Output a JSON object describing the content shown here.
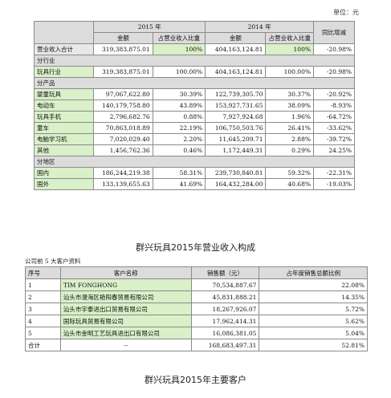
{
  "unit_note": "单位：元",
  "revenue_table": {
    "headers": {
      "year_2015": "2015 年",
      "year_2014": "2014 年",
      "yoy": "同比增减",
      "amount": "金额",
      "share": "占营业收入比重"
    },
    "total": {
      "label": "营业收入合计",
      "amt2015": "319,383,875.01",
      "pct2015": "100%",
      "amt2014": "404,163,124.81",
      "pct2014": "100%",
      "yoy": "-20.98%"
    },
    "sections": [
      {
        "title": "分行业",
        "rows": [
          {
            "label": "玩具行业",
            "amt2015": "319,383,875.01",
            "pct2015": "100.00%",
            "amt2014": "404,163,124.81",
            "pct2014": "100.00%",
            "yoy": "-20.98%"
          }
        ]
      },
      {
        "title": "分产品",
        "rows": [
          {
            "label": "婴童玩具",
            "amt2015": "97,067,622.80",
            "pct2015": "30.39%",
            "amt2014": "122,739,305.70",
            "pct2014": "30.37%",
            "yoy": "-20.92%"
          },
          {
            "label": "电动车",
            "amt2015": "140,179,758.80",
            "pct2015": "43.89%",
            "amt2014": "153,927,731.65",
            "pct2014": "38.09%",
            "yoy": "-8.93%"
          },
          {
            "label": "玩具手机",
            "amt2015": "2,796,682.76",
            "pct2015": "0.88%",
            "amt2014": "7,927,924.68",
            "pct2014": "1.96%",
            "yoy": "-64.72%"
          },
          {
            "label": "童车",
            "amt2015": "70,863,018.89",
            "pct2015": "22.19%",
            "amt2014": "106,750,503.76",
            "pct2014": "26.41%",
            "yoy": "-33.62%"
          },
          {
            "label": "电脑学习机",
            "amt2015": "7,020,029.40",
            "pct2015": "2.20%",
            "amt2014": "11,645,209.71",
            "pct2014": "2.88%",
            "yoy": "-39.72%"
          },
          {
            "label": "其他",
            "amt2015": "1,456,762.36",
            "pct2015": "0.46%",
            "amt2014": "1,172,449.31",
            "pct2014": "0.29%",
            "yoy": "24.25%"
          }
        ]
      },
      {
        "title": "分地区",
        "rows": [
          {
            "label": "国内",
            "amt2015": "186,244,219.38",
            "pct2015": "58.31%",
            "amt2014": "239,730,840.81",
            "pct2014": "59.32%",
            "yoy": "-22.31%"
          },
          {
            "label": "国外",
            "amt2015": "133,139,655.63",
            "pct2015": "41.69%",
            "amt2014": "164,432,284.00",
            "pct2014": "40.68%",
            "yoy": "-19.03%"
          }
        ]
      }
    ]
  },
  "caption1": "群兴玩具2015年营业收入构成",
  "customers": {
    "title": "公司前 5 大客户资料",
    "headers": {
      "seq": "序号",
      "name": "客户名称",
      "sales": "销售额（元）",
      "share": "占年度销售总额比例"
    },
    "rows": [
      {
        "seq": "1",
        "name": "TIM FONGHONG",
        "sales": "70,534,887.67",
        "share": "22.08%"
      },
      {
        "seq": "2",
        "name": "汕头市澄海区艳阳春贸易有限公司",
        "sales": "45,831,888.21",
        "share": "14.35%"
      },
      {
        "seq": "3",
        "name": "汕头市宇泰进出口贸易有限公司",
        "sales": "18,267,926.07",
        "share": "5.72%"
      },
      {
        "seq": "4",
        "name": "国际玩具贸易有限公司",
        "sales": "17,962,414.31",
        "share": "5.62%"
      },
      {
        "seq": "5",
        "name": "汕头市金明工艺玩具进出口有限公司",
        "sales": "16,086,381.05",
        "share": "5.04%"
      }
    ],
    "total": {
      "seq": "合计",
      "name": "--",
      "sales": "168,683,497.31",
      "share": "52.81%"
    }
  },
  "caption2": "群兴玩具2015年主要客户"
}
